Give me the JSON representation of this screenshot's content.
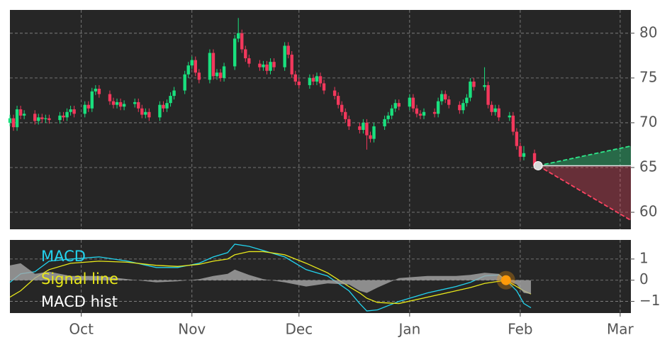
{
  "chart_data": [
    {
      "type": "candlestick",
      "x": [
        10,
        11,
        12,
        13,
        14,
        17,
        18,
        19,
        20,
        21,
        24,
        25,
        26,
        27,
        28,
        31,
        32,
        33,
        34,
        35,
        38,
        39,
        40,
        41,
        42,
        45,
        46,
        47,
        48,
        49,
        52,
        53,
        54,
        55,
        56,
        59,
        60,
        61,
        62,
        63,
        66,
        67,
        68,
        69,
        70,
        73,
        74,
        75,
        76,
        77,
        80,
        81,
        82,
        83,
        84,
        87,
        88,
        89,
        90,
        91,
        94,
        95,
        96,
        97,
        98,
        101,
        102,
        103,
        104,
        105,
        108,
        109,
        110,
        111,
        112,
        115,
        116,
        117,
        118,
        119,
        122,
        123,
        124,
        125,
        126,
        129,
        130,
        131,
        132,
        133,
        136,
        137,
        138,
        139,
        140,
        143,
        144,
        145,
        146,
        147,
        150,
        151,
        152,
        153,
        154,
        157
      ],
      "open": [
        70.0,
        70.5,
        69.5,
        71.5,
        70.8,
        71.0,
        70.2,
        70.6,
        70.4,
        70.5,
        70.3,
        70.8,
        70.6,
        71.2,
        71.5,
        71.0,
        72.0,
        71.6,
        73.5,
        73.8,
        73.2,
        72.4,
        72.0,
        72.3,
        71.8,
        72.1,
        72.3,
        71.6,
        70.9,
        71.2,
        70.6,
        72.0,
        71.6,
        72.2,
        73.0,
        73.6,
        75.4,
        76.4,
        77.0,
        75.6,
        74.8,
        77.8,
        75.2,
        75.6,
        75.0,
        76.3,
        79.4,
        80.0,
        78.2,
        77.2,
        76.6,
        76.2,
        76.5,
        75.8,
        76.8,
        76.2,
        78.6,
        77.6,
        75.4,
        74.6,
        74.2,
        75.0,
        74.6,
        75.2,
        74.4,
        73.6,
        73.0,
        72.0,
        71.2,
        70.4,
        69.6,
        69.2,
        70.0,
        68.6,
        68.2,
        69.6,
        70.4,
        70.8,
        71.6,
        72.2,
        71.8,
        72.8,
        71.6,
        71.0,
        70.8,
        71.2,
        71.0,
        72.4,
        73.2,
        72.6,
        72.0,
        71.4,
        72.2,
        72.8,
        74.6,
        74.0,
        74.2,
        72.0,
        71.2,
        71.6,
        70.6,
        70.8,
        69.0,
        67.4,
        66.2,
        66.6
      ],
      "high": [
        70.9,
        70.9,
        71.9,
        71.9,
        71.4,
        71.4,
        71.0,
        71.0,
        70.9,
        70.9,
        71.2,
        71.2,
        71.6,
        71.9,
        71.9,
        72.4,
        72.4,
        73.9,
        74.2,
        74.2,
        73.6,
        72.8,
        72.7,
        72.7,
        72.5,
        72.7,
        72.7,
        72.0,
        71.6,
        71.6,
        72.4,
        72.4,
        72.6,
        73.4,
        74.0,
        75.8,
        76.8,
        77.4,
        77.4,
        76.0,
        78.2,
        78.2,
        76.0,
        76.0,
        76.7,
        79.8,
        81.7,
        80.4,
        78.6,
        77.6,
        77.0,
        76.9,
        76.9,
        77.2,
        77.2,
        79.0,
        79.0,
        78.0,
        75.8,
        75.0,
        75.4,
        75.4,
        75.6,
        75.6,
        74.8,
        74.0,
        73.4,
        72.4,
        71.6,
        70.8,
        70.0,
        70.4,
        70.4,
        69.0,
        70.0,
        70.8,
        71.2,
        72.0,
        72.6,
        72.6,
        73.2,
        73.2,
        72.0,
        71.4,
        71.6,
        71.6,
        72.8,
        73.6,
        73.6,
        73.0,
        72.4,
        72.6,
        73.2,
        75.0,
        75.0,
        76.2,
        74.6,
        72.4,
        72.0,
        72.0,
        71.2,
        71.2,
        69.4,
        67.8,
        67.4,
        67.0
      ],
      "low": [
        69.6,
        69.1,
        69.1,
        70.4,
        70.4,
        69.8,
        69.8,
        70.0,
        70.0,
        69.9,
        69.9,
        70.2,
        70.2,
        70.8,
        70.6,
        70.6,
        71.2,
        71.2,
        73.1,
        72.8,
        72.0,
        71.6,
        71.6,
        71.4,
        71.4,
        71.7,
        71.2,
        70.5,
        70.5,
        70.2,
        70.2,
        71.2,
        71.2,
        71.8,
        72.6,
        73.2,
        75.0,
        76.0,
        75.2,
        74.4,
        74.4,
        74.8,
        74.8,
        74.6,
        74.6,
        75.9,
        79.0,
        77.8,
        76.8,
        76.2,
        75.8,
        75.8,
        75.4,
        75.4,
        75.8,
        75.8,
        77.2,
        75.0,
        74.2,
        73.8,
        73.8,
        74.2,
        74.2,
        74.0,
        73.2,
        72.6,
        71.6,
        70.8,
        70.0,
        69.2,
        68.8,
        68.8,
        67.0,
        67.8,
        67.8,
        69.2,
        70.0,
        70.4,
        71.2,
        71.4,
        71.4,
        71.2,
        70.6,
        70.4,
        70.4,
        70.6,
        70.6,
        72.0,
        72.2,
        71.6,
        71.0,
        71.0,
        71.8,
        72.4,
        73.6,
        73.6,
        71.6,
        70.8,
        70.8,
        70.2,
        70.2,
        68.6,
        67.0,
        65.8,
        65.8,
        64.8
      ],
      "close": [
        70.5,
        69.5,
        71.5,
        70.8,
        71.0,
        70.2,
        70.6,
        70.4,
        70.5,
        70.3,
        70.8,
        70.6,
        71.2,
        71.5,
        71.0,
        72.0,
        71.6,
        73.5,
        73.8,
        73.2,
        72.4,
        72.0,
        72.3,
        71.8,
        72.1,
        72.3,
        71.6,
        70.9,
        71.2,
        70.6,
        72.0,
        71.6,
        72.2,
        73.0,
        73.6,
        75.4,
        76.4,
        77.0,
        75.6,
        74.8,
        77.8,
        75.2,
        75.6,
        75.0,
        76.3,
        79.4,
        80.0,
        78.2,
        77.2,
        76.6,
        76.2,
        76.5,
        75.8,
        76.8,
        76.2,
        78.6,
        77.6,
        75.4,
        74.6,
        74.2,
        75.0,
        74.6,
        75.2,
        74.4,
        73.6,
        73.0,
        72.0,
        71.2,
        70.4,
        69.6,
        69.2,
        70.0,
        68.6,
        68.2,
        69.6,
        70.4,
        70.8,
        71.6,
        72.2,
        71.8,
        72.8,
        71.6,
        71.0,
        70.8,
        71.2,
        71.0,
        72.4,
        73.2,
        72.6,
        72.0,
        71.4,
        72.2,
        72.8,
        74.6,
        74.0,
        74.2,
        72.0,
        71.2,
        71.6,
        70.6,
        70.8,
        69.0,
        67.4,
        66.2,
        66.6,
        65.2
      ],
      "up_color": "#19e07e",
      "down_color": "#f2385c",
      "forecast": {
        "x": [
          158,
          184
        ],
        "upper": [
          65.2,
          67.4
        ],
        "lower": [
          65.2,
          59.1
        ],
        "upper_color": "#2ee88a",
        "lower_color": "#ff4462"
      },
      "xlim": [
        10,
        184
      ],
      "ylim": [
        58.1,
        82.6
      ],
      "yticks": [
        60,
        65,
        70,
        75,
        80
      ],
      "grid": true
    },
    {
      "type": "line",
      "x": [
        10,
        13,
        17,
        21,
        27,
        35,
        43,
        51,
        57,
        63,
        67,
        71,
        73,
        77,
        81,
        87,
        93,
        99,
        105,
        108,
        110,
        113,
        119,
        127,
        135,
        139,
        143,
        147,
        149,
        152,
        154,
        156
      ],
      "series": [
        {
          "name": "MACD",
          "color": "#22d3ee",
          "values": [
            -0.1,
            0.3,
            0.4,
            0.9,
            1.0,
            1.1,
            0.9,
            0.6,
            0.6,
            0.8,
            1.1,
            1.3,
            1.7,
            1.6,
            1.4,
            1.1,
            0.5,
            0.2,
            -0.5,
            -1.1,
            -1.45,
            -1.4,
            -1.0,
            -0.6,
            -0.3,
            -0.1,
            0.2,
            0.25,
            0.0,
            -0.5,
            -1.1,
            -1.3
          ]
        },
        {
          "name": "Signal line",
          "color": "#e8e81a",
          "values": [
            -0.8,
            -0.5,
            0.1,
            0.5,
            0.8,
            0.9,
            0.85,
            0.7,
            0.65,
            0.75,
            0.9,
            1.0,
            1.2,
            1.35,
            1.35,
            1.2,
            0.8,
            0.35,
            -0.3,
            -0.6,
            -0.85,
            -1.05,
            -1.1,
            -0.8,
            -0.5,
            -0.35,
            -0.15,
            -0.05,
            0.0,
            -0.3,
            -0.5,
            -0.65
          ]
        },
        {
          "name": "MACD hist",
          "color": "#ffffff",
          "fill": "#a8a8a8",
          "values": [
            0.7,
            0.8,
            0.3,
            0.4,
            0.2,
            0.2,
            0.05,
            -0.1,
            -0.05,
            0.05,
            0.2,
            0.3,
            0.5,
            0.25,
            0.05,
            -0.1,
            -0.3,
            -0.15,
            -0.2,
            -0.5,
            -0.6,
            -0.35,
            0.1,
            0.2,
            0.2,
            0.25,
            0.35,
            0.3,
            0.0,
            -0.2,
            -0.6,
            -0.65
          ]
        }
      ],
      "marker": {
        "x": 149,
        "y": 0,
        "color": "#ff9a0a"
      },
      "xlim": [
        10,
        184
      ],
      "ylim": [
        -1.55,
        1.9
      ],
      "yticks": [
        {
          "value": -1,
          "label": "−1"
        },
        0,
        1
      ],
      "xticks": [
        {
          "value": 30,
          "label": "Oct"
        },
        {
          "value": 61,
          "label": "Nov"
        },
        {
          "value": 91,
          "label": "Dec"
        },
        {
          "value": 122,
          "label": "Jan"
        },
        {
          "value": 153,
          "label": "Feb"
        },
        {
          "value": 181,
          "label": "Mar"
        }
      ],
      "grid": true
    }
  ]
}
